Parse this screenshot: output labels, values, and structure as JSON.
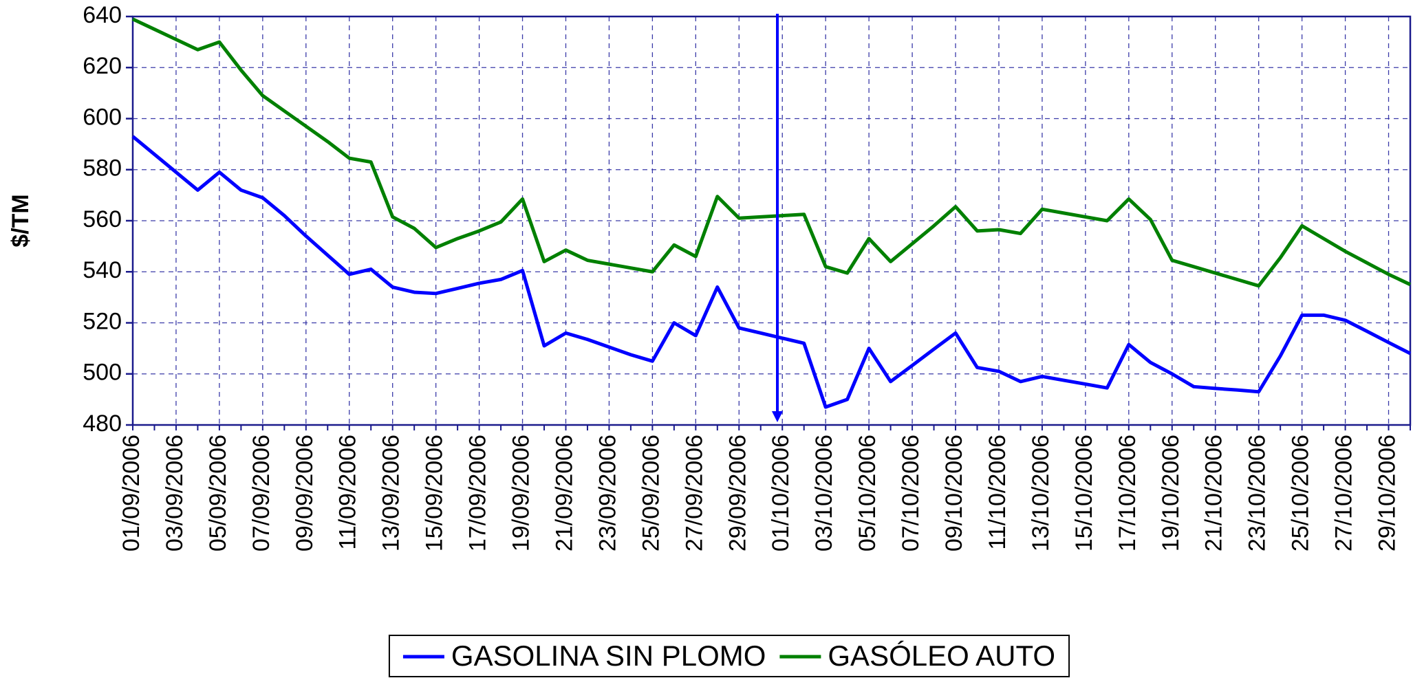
{
  "chart_data": {
    "type": "line",
    "y_label": "$/TM",
    "categories": [
      "01/09/2006",
      null,
      "03/09/2006",
      null,
      "05/09/2006",
      null,
      "07/09/2006",
      null,
      "09/09/2006",
      null,
      "11/09/2006",
      null,
      "13/09/2006",
      null,
      "15/09/2006",
      null,
      "17/09/2006",
      null,
      "19/09/2006",
      null,
      "21/09/2006",
      null,
      "23/09/2006",
      null,
      "25/09/2006",
      null,
      "27/09/2006",
      null,
      "29/09/2006",
      null,
      "01/10/2006",
      null,
      "03/10/2006",
      null,
      "05/10/2006",
      null,
      "07/10/2006",
      null,
      "09/10/2006",
      null,
      "11/10/2006",
      null,
      "13/10/2006",
      null,
      "15/10/2006",
      null,
      "17/10/2006",
      null,
      "19/10/2006",
      null,
      "21/10/2006",
      null,
      "23/10/2006",
      null,
      "25/10/2006",
      null,
      "27/10/2006",
      null,
      "29/10/2006",
      null
    ],
    "series": [
      {
        "name": "GASOLINA SIN PLOMO",
        "color": "#0000ff",
        "values": [
          593,
          586,
          579,
          572,
          579,
          572,
          569,
          562,
          554,
          546.5,
          539,
          541,
          534,
          532,
          531.5,
          533.5,
          535.5,
          537,
          540.5,
          511,
          516,
          513.5,
          510.5,
          507.5,
          505,
          520,
          515,
          534,
          518,
          516,
          514,
          512,
          487,
          490,
          510,
          497,
          503.3,
          509.7,
          516,
          502.5,
          501,
          497,
          499,
          497.5,
          496,
          494.5,
          511.5,
          504.5,
          500,
          495,
          494.3,
          493.7,
          493,
          507,
          523,
          523,
          521,
          516.7,
          512.3,
          508
        ]
      },
      {
        "name": "GASÓLEO AUTO",
        "color": "#008000",
        "values": [
          639,
          635,
          631,
          627,
          630,
          619,
          609,
          603,
          597,
          591,
          584.5,
          583,
          561.5,
          557,
          549.5,
          553,
          556,
          559.5,
          568.5,
          544,
          548.5,
          544.5,
          543,
          541.5,
          540,
          550.5,
          546,
          569.5,
          561,
          561.5,
          562,
          562.5,
          542,
          539.5,
          553,
          544,
          551,
          558,
          565.5,
          556,
          556.5,
          555,
          564.5,
          563,
          561.5,
          560,
          568.5,
          560.5,
          544.5,
          542,
          539.5,
          537,
          534.5,
          545.5,
          558,
          553,
          548,
          543.5,
          539,
          535
        ]
      }
    ],
    "ylim": [
      480,
      640
    ],
    "yticks": [
      480,
      500,
      520,
      540,
      560,
      580,
      600,
      620,
      640
    ],
    "grid": true,
    "legend": "bottom"
  }
}
